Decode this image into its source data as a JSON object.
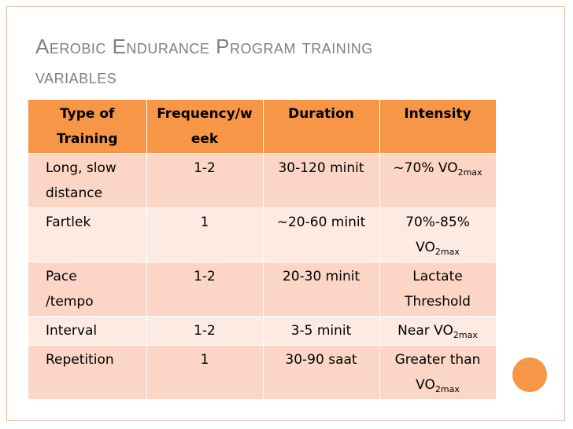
{
  "slide": {
    "title_line1": "Aerobic Endurance Program training",
    "title_line2": "variables",
    "accent_color": "#f79646"
  },
  "table": {
    "headers": {
      "type_line1": "Type of",
      "type_line2": "Training",
      "freq_line1": "Frequency/w",
      "freq_line2": "eek",
      "duration": "Duration",
      "intensity": "Intensity"
    },
    "rows": [
      {
        "type_line1": "Long, slow",
        "type_line2": "distance",
        "frequency": "1-2",
        "duration": "30-120 minit",
        "intensity_pre": "~70% VO",
        "intensity_sub": "2max",
        "intensity_line2": ""
      },
      {
        "type_line1": "Fartlek",
        "type_line2": "",
        "frequency": "1",
        "duration": "~20-60 minit",
        "intensity_pre": "70%-85%",
        "intensity_line2_pre": "VO",
        "intensity_line2_sub": "2max"
      },
      {
        "type_line1": "Pace",
        "type_line2": "/tempo",
        "frequency": "1-2",
        "duration": "20-30 minit",
        "intensity_pre": "Lactate",
        "intensity_line2": "Threshold"
      },
      {
        "type_line1": "Interval",
        "frequency": "1-2",
        "duration": "3-5 minit",
        "intensity_pre": "Near VO",
        "intensity_sub": "2max"
      },
      {
        "type_line1": "Repetition",
        "frequency": "1",
        "duration": "30-90 saat",
        "intensity_pre": "Greater than",
        "intensity_line2_pre": "VO",
        "intensity_line2_sub": "2max"
      }
    ]
  }
}
